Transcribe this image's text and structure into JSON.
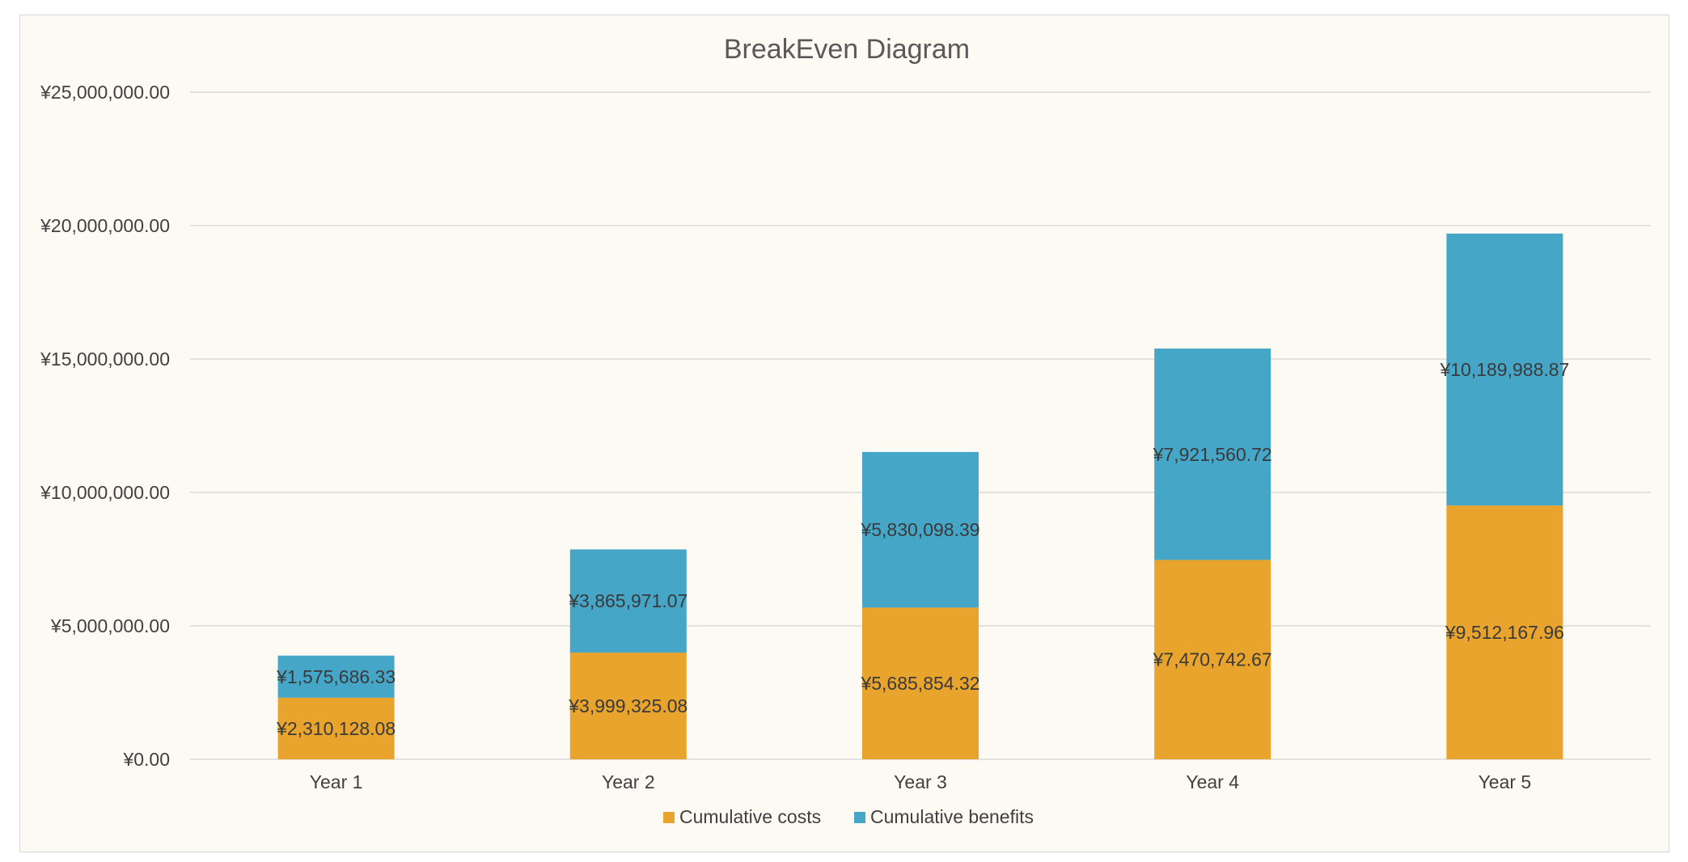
{
  "chart_data": {
    "type": "bar",
    "stacked": true,
    "title": "BreakEven Diagram",
    "xlabel": "",
    "ylabel": "",
    "categories": [
      "Year 1",
      "Year 2",
      "Year 3",
      "Year 4",
      "Year 5"
    ],
    "series": [
      {
        "name": "Cumulative costs",
        "color": "#e8a42c",
        "values": [
          2310128.08,
          3999325.08,
          5685854.32,
          7470742.67,
          9512167.96
        ],
        "labels": [
          "¥2,310,128.08",
          "¥3,999,325.08",
          "¥5,685,854.32",
          "¥7,470,742.67",
          "¥9,512,167.96"
        ]
      },
      {
        "name": "Cumulative benefits",
        "color": "#45a6c8",
        "values": [
          1575686.33,
          3865971.07,
          5830098.39,
          7921560.72,
          10189988.87
        ],
        "labels": [
          "¥1,575,686.33",
          "¥3,865,971.07",
          "¥5,830,098.39",
          "¥7,921,560.72",
          "¥10,189,988.87"
        ]
      }
    ],
    "ylim": [
      0,
      25000000
    ],
    "yticks": [
      0,
      5000000,
      10000000,
      15000000,
      20000000,
      25000000
    ],
    "ytick_labels": [
      "¥0.00",
      "¥5,000,000.00",
      "¥10,000,000.00",
      "¥15,000,000.00",
      "¥20,000,000.00",
      "¥25,000,000.00"
    ],
    "grid": true,
    "legend": "bottom",
    "background": "#fcfaf3"
  }
}
